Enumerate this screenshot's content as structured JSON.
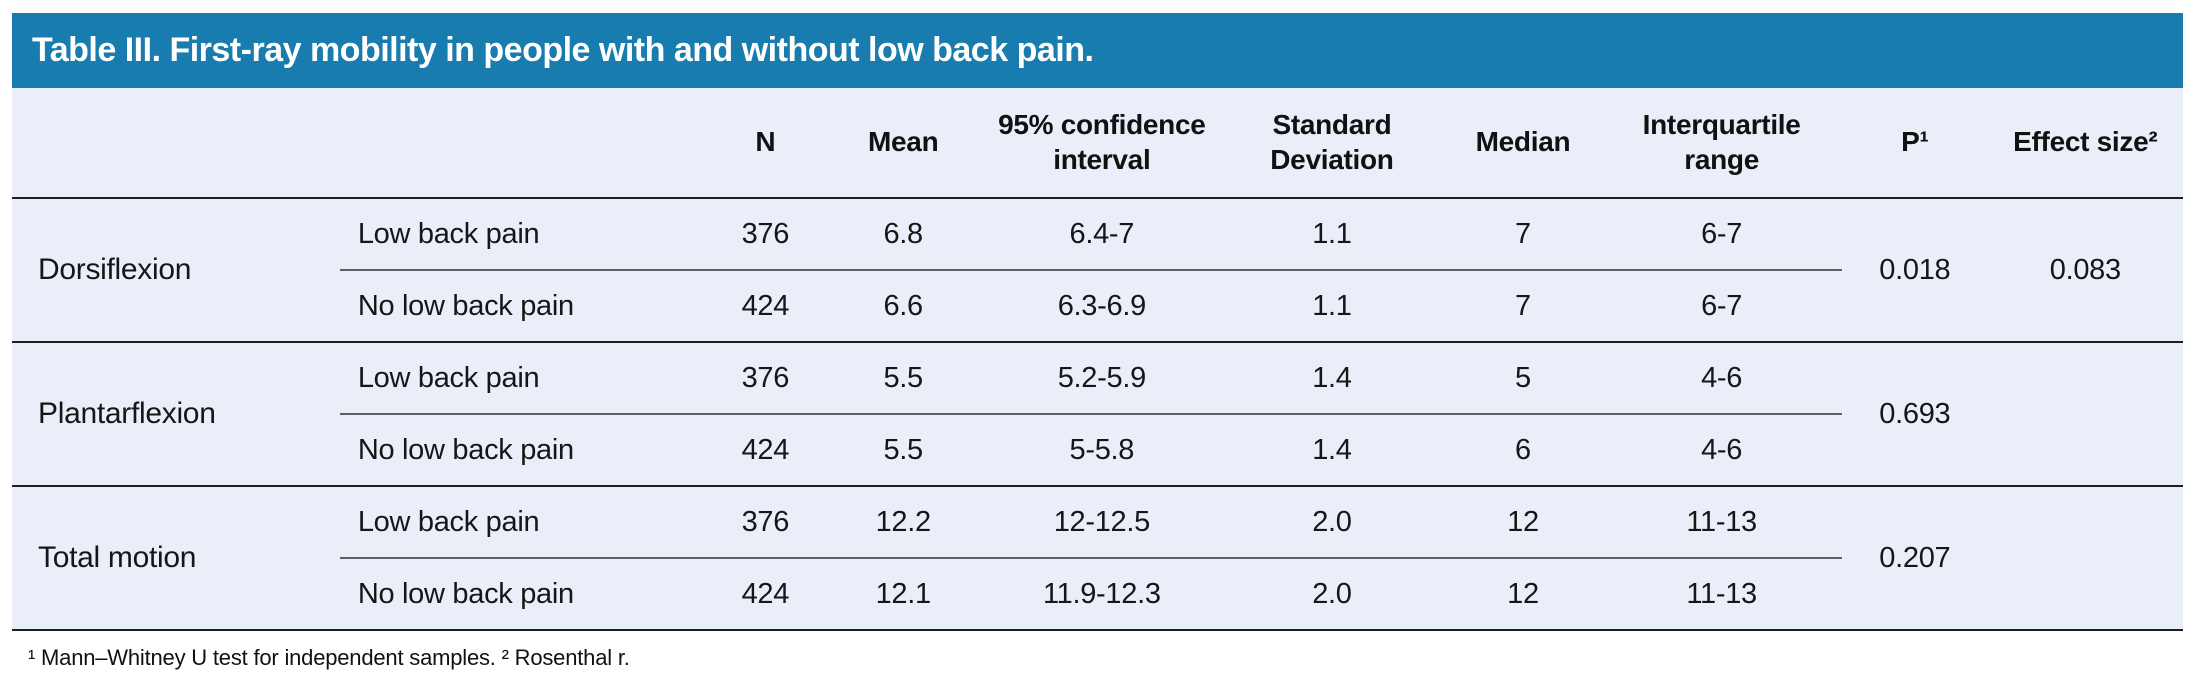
{
  "title": "Table III. First-ray mobility in people with and without low back pain.",
  "colors": {
    "title_bar_bg": "#187cae",
    "title_text": "#ffffff",
    "table_bg": "#eaeef8",
    "rule_dark": "#1f1f1f",
    "rule_light": "#606060",
    "body_text": "#161616"
  },
  "columns": [
    "",
    "",
    "N",
    "Mean",
    "95% confidence interval",
    "Standard Deviation",
    "Median",
    "Interquartile range",
    "P¹",
    "Effect size²"
  ],
  "sections": [
    {
      "label": "Dorsiflexion",
      "rows": [
        {
          "group": "Low back pain",
          "n": "376",
          "mean": "6.8",
          "ci": "6.4-7",
          "sd": "1.1",
          "median": "7",
          "iqr": "6-7"
        },
        {
          "group": "No low back pain",
          "n": "424",
          "mean": "6.6",
          "ci": "6.3-6.9",
          "sd": "1.1",
          "median": "7",
          "iqr": "6-7"
        }
      ],
      "p": "0.018",
      "effect_size": "0.083"
    },
    {
      "label": "Plantarflexion",
      "rows": [
        {
          "group": "Low back pain",
          "n": "376",
          "mean": "5.5",
          "ci": "5.2-5.9",
          "sd": "1.4",
          "median": "5",
          "iqr": "4-6"
        },
        {
          "group": "No low back pain",
          "n": "424",
          "mean": "5.5",
          "ci": "5-5.8",
          "sd": "1.4",
          "median": "6",
          "iqr": "4-6"
        }
      ],
      "p": "0.693",
      "effect_size": ""
    },
    {
      "label": "Total motion",
      "rows": [
        {
          "group": "Low back pain",
          "n": "376",
          "mean": "12.2",
          "ci": "12-12.5",
          "sd": "2.0",
          "median": "12",
          "iqr": "11-13"
        },
        {
          "group": "No low back pain",
          "n": "424",
          "mean": "12.1",
          "ci": "11.9-12.3",
          "sd": "2.0",
          "median": "12",
          "iqr": "11-13"
        }
      ],
      "p": "0.207",
      "effect_size": ""
    }
  ],
  "footnote": "¹ Mann–Whitney U test for independent samples. ² Rosenthal r."
}
